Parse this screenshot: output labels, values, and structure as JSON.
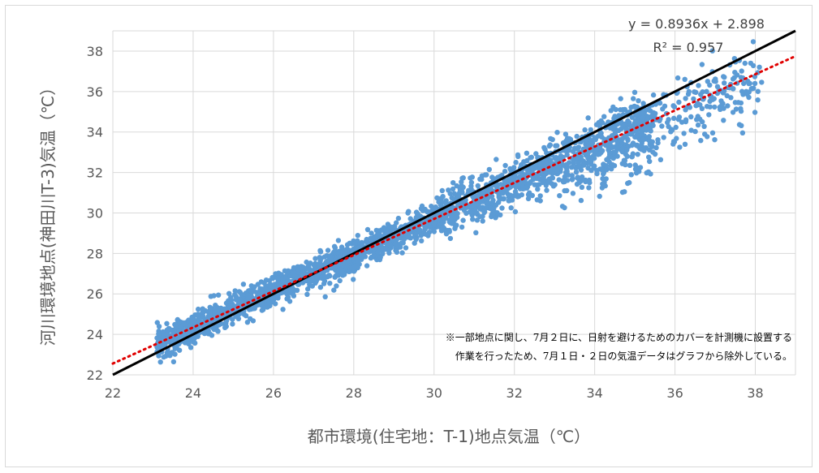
{
  "chart_data": {
    "type": "scatter",
    "title": "",
    "xlabel": "都市環境(住宅地：T-1)地点気温（℃）",
    "ylabel": "河川環境地点(神田川T-3)気温（℃）",
    "xlim": [
      22,
      39
    ],
    "ylim": [
      22,
      39
    ],
    "x_ticks": [
      22,
      24,
      26,
      28,
      30,
      32,
      34,
      36,
      38
    ],
    "y_ticks": [
      22,
      24,
      26,
      28,
      30,
      32,
      34,
      36,
      38
    ],
    "grid": true,
    "marker_color": "#5b9bd5",
    "point_cloud": {
      "x_range": [
        23.0,
        38.5
      ],
      "approx_relation": "y ≈ 0.8936x + 2.898"
    },
    "reference_line": {
      "type": "y=x",
      "color": "#000000",
      "x": [
        22,
        39
      ],
      "y": [
        22,
        39
      ]
    },
    "trendline": {
      "type": "linear",
      "slope": 0.8936,
      "intercept": 2.898,
      "color": "#e00000",
      "style": "dotted",
      "equation": "y = 0.8936x + 2.898",
      "r_squared": "R² = 0.957"
    },
    "annotation": {
      "line1": "※一部地点に関し、7月２日に、日射を避けるためのカバーを計測機に設置する",
      "line2": "作業を行ったため、7月１日・２日の気温データはグラフから除外している。"
    }
  }
}
